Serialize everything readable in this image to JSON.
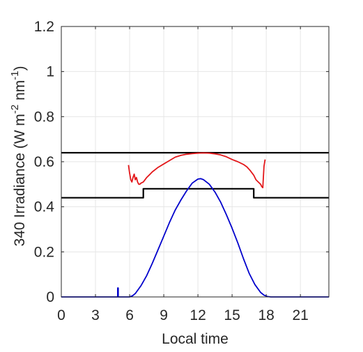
{
  "chart_data": {
    "type": "line",
    "title": "",
    "xlabel": "Local time",
    "ylabel": {
      "main": "340 Irradiance (W m",
      "sup1": "-2",
      "mid": " nm",
      "sup2": "-1",
      "end": ")"
    },
    "xlim": [
      0,
      23.5
    ],
    "ylim": [
      0,
      1.2
    ],
    "xticks": [
      0,
      3,
      6,
      9,
      12,
      15,
      18,
      21
    ],
    "xtick_labels": [
      "0",
      "3",
      "6",
      "9",
      "12",
      "15",
      "18",
      "21"
    ],
    "yticks": [
      0,
      0.2,
      0.4,
      0.6,
      0.8,
      1.0,
      1.2
    ],
    "ytick_labels": [
      "0",
      "0.2",
      "0.4",
      "0.6",
      "0.8",
      "1",
      "1.2"
    ],
    "grid": true,
    "legend": "none",
    "series": [
      {
        "color": "#000000",
        "x": [
          0,
          23.5
        ],
        "y": [
          0.64,
          0.64
        ]
      },
      {
        "color": "#000000",
        "x": [
          0,
          7.2,
          7.2,
          16.9,
          16.9,
          23.5
        ],
        "y": [
          0.44,
          0.44,
          0.48,
          0.48,
          0.44,
          0.44
        ]
      },
      {
        "color": "#e3171a",
        "x": [
          5.9,
          6.0,
          6.1,
          6.2,
          6.3,
          6.4,
          6.5,
          6.6,
          6.7,
          6.8,
          6.9,
          7.0,
          7.2,
          7.5,
          7.8,
          8.0,
          8.5,
          9.0,
          9.5,
          10.0,
          10.5,
          11.0,
          11.5,
          12.0,
          12.5,
          13.0,
          13.5,
          14.0,
          14.5,
          15.0,
          15.5,
          16.0,
          16.3,
          16.6,
          16.9,
          17.1,
          17.3,
          17.5,
          17.6,
          17.7,
          17.75,
          17.8,
          17.9
        ],
        "y": [
          0.585,
          0.55,
          0.52,
          0.51,
          0.53,
          0.545,
          0.52,
          0.53,
          0.51,
          0.5,
          0.5,
          0.505,
          0.51,
          0.53,
          0.545,
          0.555,
          0.575,
          0.59,
          0.605,
          0.62,
          0.628,
          0.633,
          0.636,
          0.638,
          0.639,
          0.638,
          0.635,
          0.63,
          0.622,
          0.61,
          0.6,
          0.588,
          0.577,
          0.56,
          0.54,
          0.52,
          0.51,
          0.5,
          0.49,
          0.485,
          0.53,
          0.58,
          0.61
        ]
      },
      {
        "color": "#0000cc",
        "x": [
          0,
          4.95,
          4.95,
          5.0,
          5.0,
          6.0,
          6.25,
          6.5,
          7.0,
          7.5,
          8.0,
          8.5,
          9.0,
          9.5,
          10.0,
          10.5,
          11.0,
          11.5,
          12.0,
          12.25,
          12.5,
          13.0,
          13.5,
          14.0,
          14.5,
          15.0,
          15.5,
          16.0,
          16.5,
          17.0,
          17.5,
          17.8,
          18.1,
          18.4,
          18.7,
          23.5
        ],
        "y": [
          0,
          0,
          0.04,
          0.04,
          0,
          0,
          0.005,
          0.015,
          0.05,
          0.095,
          0.15,
          0.21,
          0.27,
          0.33,
          0.385,
          0.43,
          0.47,
          0.505,
          0.523,
          0.525,
          0.52,
          0.5,
          0.465,
          0.42,
          0.365,
          0.305,
          0.24,
          0.17,
          0.105,
          0.055,
          0.02,
          0.008,
          0.002,
          0,
          0,
          0
        ]
      }
    ]
  }
}
